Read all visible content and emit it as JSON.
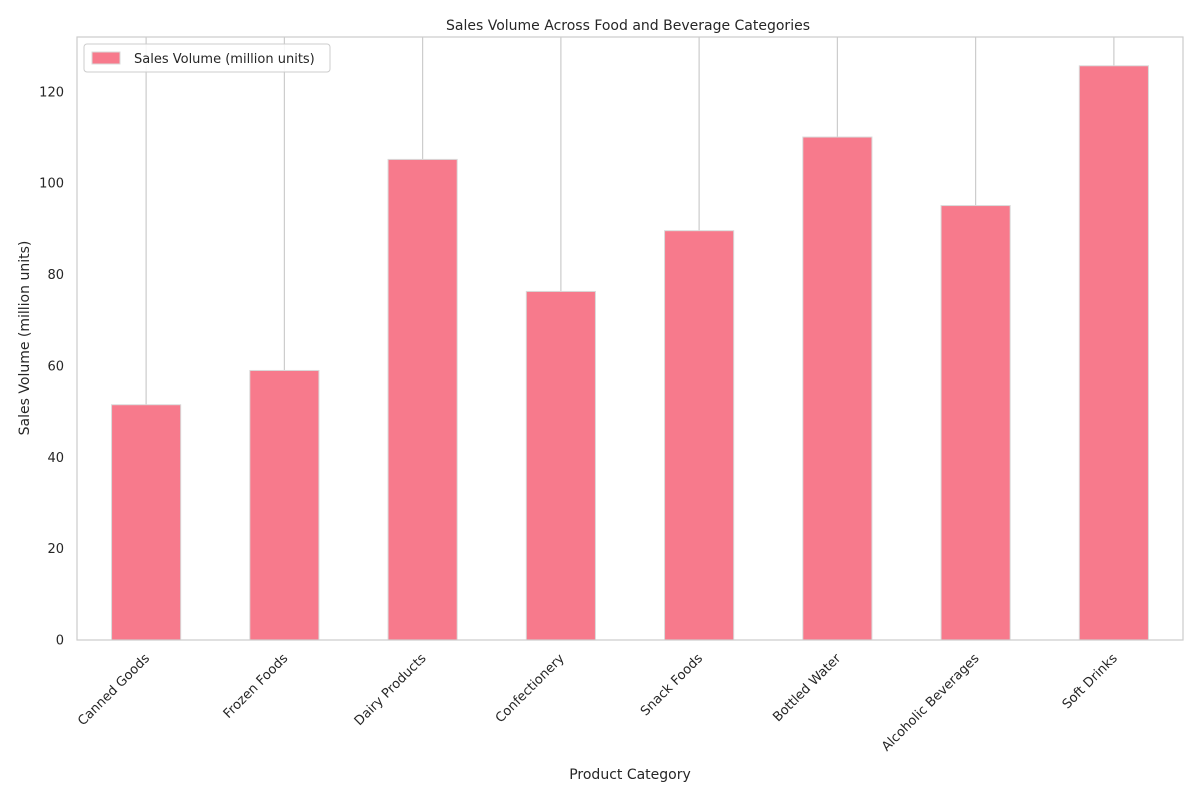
{
  "chart_data": {
    "type": "bar",
    "title": "Sales Volume Across Food and Beverage Categories",
    "xlabel": "Product Category",
    "ylabel": "Sales Volume (million units)",
    "categories": [
      "Canned Goods",
      "Frozen Foods",
      "Dairy Products",
      "Confectionery",
      "Snack Foods",
      "Bottled Water",
      "Alcoholic Beverages",
      "Soft Drinks"
    ],
    "series": [
      {
        "name": "Sales Volume (million units)",
        "values": [
          51.5,
          59.0,
          105.2,
          76.3,
          89.6,
          110.1,
          95.1,
          125.7
        ],
        "color": "#f77a8c"
      }
    ],
    "ylim": [
      0,
      132
    ],
    "yticks": [
      0,
      20,
      40,
      60,
      80,
      100,
      120
    ],
    "grid": "x-only",
    "legend_position": "top-left",
    "colors": {
      "axis": "#cccccc",
      "grid": "#cccccc",
      "bar_edge": "#d9d9d9",
      "text": "#262626"
    }
  }
}
